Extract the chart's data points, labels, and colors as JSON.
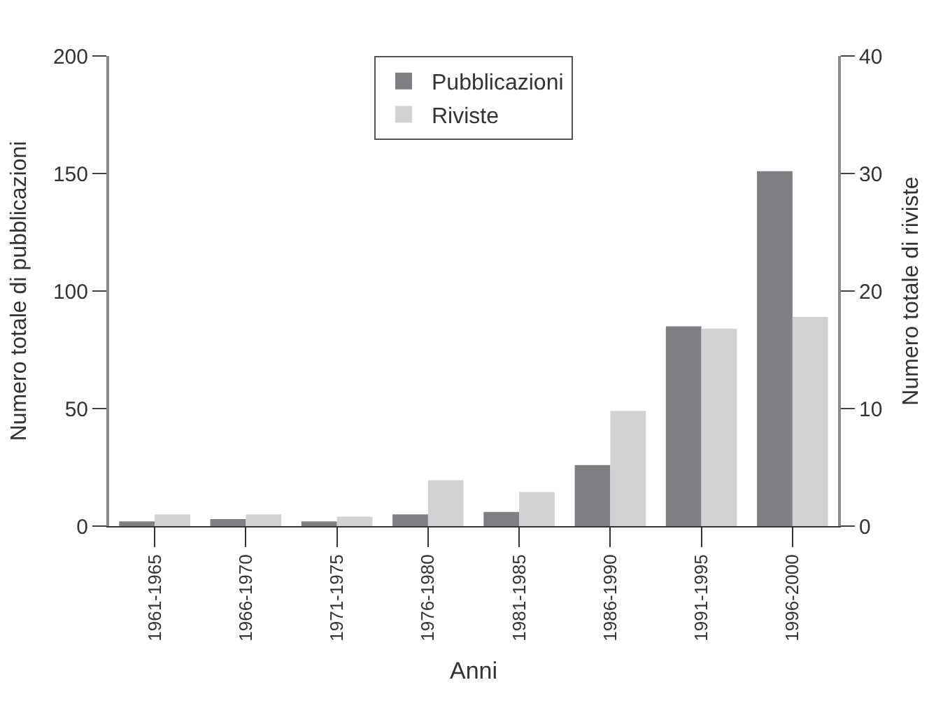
{
  "chart_data": {
    "type": "bar",
    "categories": [
      "1961-1965",
      "1966-1970",
      "1971-1975",
      "1976-1980",
      "1981-1985",
      "1986-1990",
      "1991-1995",
      "1996-2000"
    ],
    "series": [
      {
        "name": "Pubblicazioni",
        "color": "#7f7f83",
        "values": [
          2,
          3,
          2,
          5,
          6,
          26,
          85,
          151
        ]
      },
      {
        "name": "Riviste",
        "color": "#d1d2d4",
        "axis": "y2",
        "values": [
          1,
          1,
          0.8,
          3.9,
          2.9,
          9.8,
          16.8,
          17.8
        ]
      }
    ],
    "xlabel": "Anni",
    "ylabel": "Numero totale di pubblicazioni",
    "y2label": "Numero totale di riviste",
    "ylim": [
      0,
      200
    ],
    "yticks": [
      0,
      50,
      100,
      150,
      200
    ],
    "y2lim": [
      0,
      40
    ],
    "y2ticks": [
      0,
      10,
      20,
      30,
      40
    ],
    "legend": "top"
  }
}
